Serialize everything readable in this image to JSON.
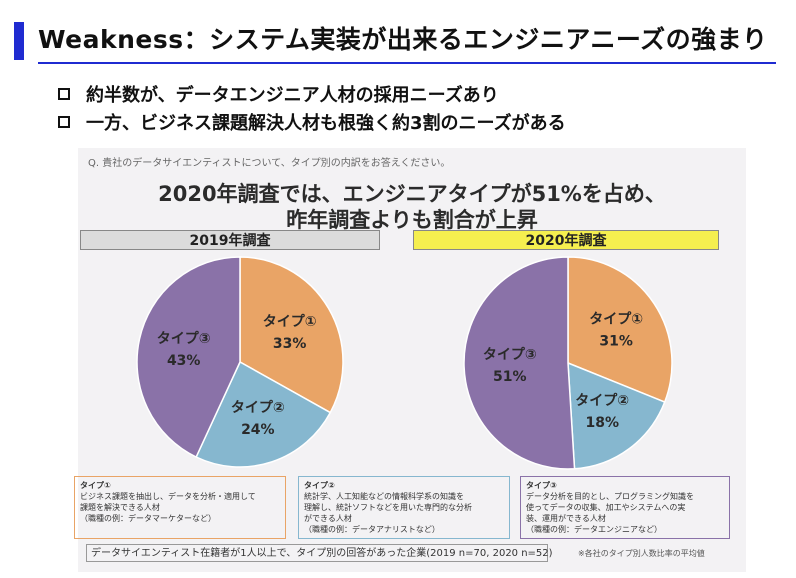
{
  "slide": {
    "title": "Weakness：システム実装が出来るエンジニアニーズの強まり",
    "bullets": [
      "約半数が、データエンジニア人材の採用ニーズあり",
      "一方、ビジネス課題解決人材も根強く約3割のニーズがある"
    ]
  },
  "figure": {
    "question": "Q. 貴社のデータサイエンティストについて、タイプ別の内訳をお答えください。",
    "headline_line1": "2020年調査では、エンジニアタイプが51%を占め、",
    "headline_line2": "昨年調査よりも割合が上昇",
    "descriptions": [
      {
        "lines": [
          "タイプ①",
          "ビジネス課題を抽出し、データを分析・適用して",
          "課題を解決できる人材",
          "（職種の例：データマーケターなど）"
        ]
      },
      {
        "lines": [
          "タイプ②",
          "統計学、人工知能などの情報科学系の知識を",
          "理解し、統計ソフトなどを用いた専門的な分析",
          "ができる人材",
          "（職種の例：データアナリストなど）"
        ]
      },
      {
        "lines": [
          "タイプ③",
          "データ分析を目的とし、プログラミング知識を",
          "使ってデータの収集、加工やシステムへの実",
          "装、運用ができる人材",
          "（職種の例：データエンジニアなど）"
        ]
      }
    ],
    "footer": "データサイエンティスト在籍者が1人以上で、タイプ別の回答があった企業(2019 n=70, 2020 n=52)",
    "footnote": "※各社のタイプ別人数比率の平均値"
  },
  "chart_data": [
    {
      "type": "pie",
      "title": "2019年調査",
      "categories": [
        "タイプ①",
        "タイプ②",
        "タイプ③"
      ],
      "values": [
        33,
        24,
        43
      ],
      "value_labels": [
        "33%",
        "24%",
        "43%"
      ],
      "colors": [
        "#e9a466",
        "#86b7cf",
        "#8a72a8"
      ]
    },
    {
      "type": "pie",
      "title": "2020年調査",
      "categories": [
        "タイプ①",
        "タイプ②",
        "タイプ③"
      ],
      "values": [
        31,
        18,
        51
      ],
      "value_labels": [
        "31%",
        "18%",
        "51%"
      ],
      "colors": [
        "#e9a466",
        "#86b7cf",
        "#8a72a8"
      ]
    }
  ],
  "colors": {
    "accent": "#1f2bd1",
    "label_2019_bg": "#dcdcdc",
    "label_2020_bg": "#f5ef4f",
    "desc_borders": [
      "#e9a466",
      "#86b7cf",
      "#8a72a8"
    ]
  }
}
